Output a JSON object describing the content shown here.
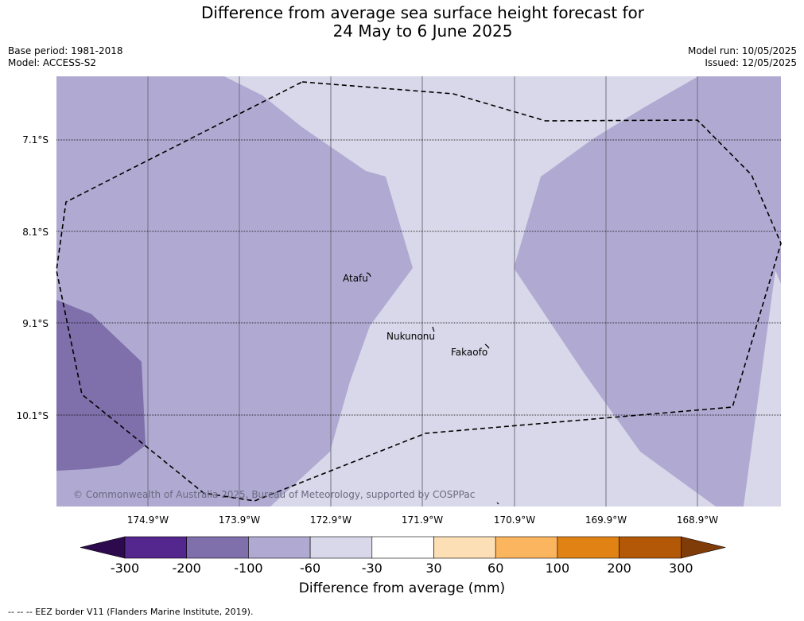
{
  "title_line1": "Difference from average sea surface height forecast for",
  "title_line2": "24 May to 6 June 2025",
  "meta_left": [
    "Base period: 1981-2018",
    "Model: ACCESS-S2"
  ],
  "meta_right": [
    "Model run: 10/05/2025",
    "Issued: 12/05/2025"
  ],
  "lat_ticks": [
    "7.1°S",
    "8.1°S",
    "9.1°S",
    "10.1°S"
  ],
  "lon_ticks": [
    "174.9°W",
    "173.9°W",
    "172.9°W",
    "171.9°W",
    "170.9°W",
    "169.9°W",
    "168.9°W"
  ],
  "places": [
    "Atafu",
    "Nukunonu",
    "Fakaofo"
  ],
  "copyright": "© Commonwealth of Australia 2025, Bureau of Meteorology, supported by COSPPac",
  "colorbar": {
    "labels": [
      "-300",
      "-200",
      "-100",
      "-60",
      "-30",
      "30",
      "60",
      "100",
      "200",
      "300"
    ],
    "colors": [
      "#2d0a4e",
      "#54278f",
      "#7f70ab",
      "#b0aad2",
      "#d8d8ea",
      "#ffffff",
      "#fddfb5",
      "#fbb55e",
      "#e08214",
      "#b35806",
      "#7f3b08"
    ],
    "title": "Difference from average (mm)"
  },
  "legend_note": "--  --  -- EEZ border V11 (Flanders Marine Institute, 2019).",
  "map_colors": {
    "light": "#d8d8ea",
    "medium": "#b0aad2",
    "dark": "#7f70ab"
  }
}
